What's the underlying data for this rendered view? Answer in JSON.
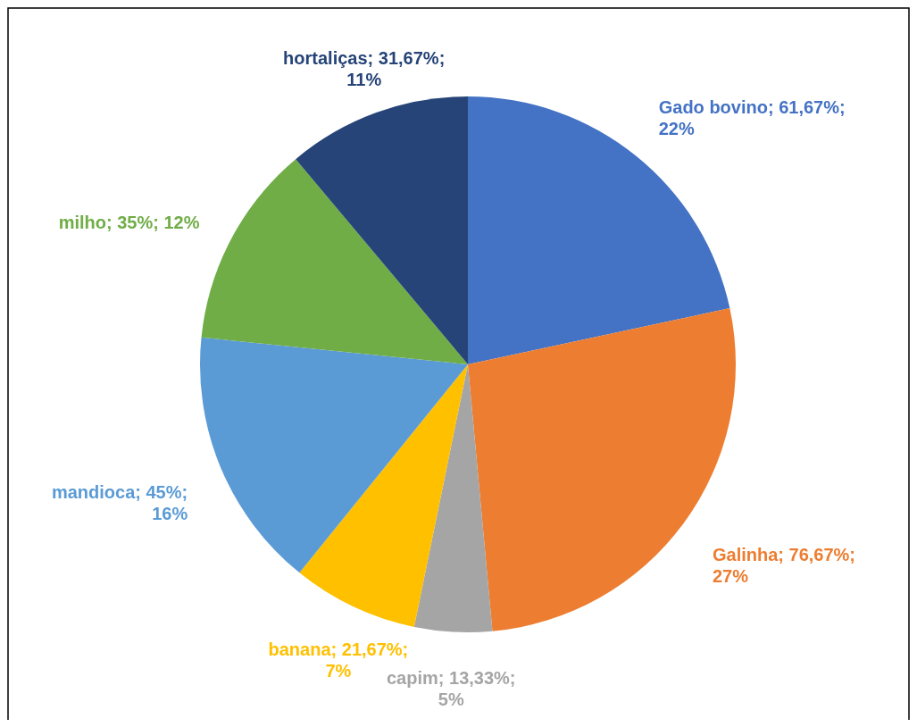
{
  "chart_data": {
    "type": "pie",
    "categories": [
      "Gado bovino",
      "Galinha",
      "capim",
      "banana",
      "mandioca",
      "milho",
      "hortaliças"
    ],
    "values": [
      61.67,
      76.67,
      13.33,
      21.67,
      45,
      35,
      31.67
    ],
    "colors": [
      "#4472c4",
      "#ed7d31",
      "#a5a5a5",
      "#ffc000",
      "#5b9bd5",
      "#70ad47",
      "#264478"
    ],
    "value_labels": [
      "61,67%; 22%",
      "76,67%; 27%",
      "13,33%; 5%",
      "21,67%; 7%",
      "45%; 16%",
      "35%; 12%",
      "31,67%; 11%"
    ]
  }
}
